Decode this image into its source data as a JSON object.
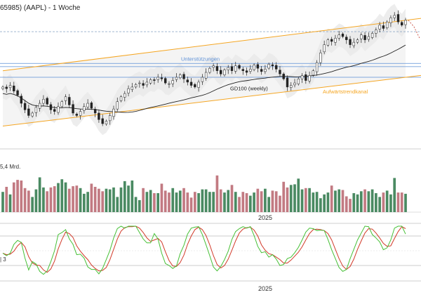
{
  "title": "65985) (AAPL) - 1 Woche",
  "colors": {
    "up": "#1f8a4c",
    "down": "#c0392b",
    "vol_up": "#4a8a62",
    "vol_down": "#c27a82",
    "channel": "#f5a623",
    "support": "#5b8fd6",
    "ma": "#222222",
    "stoch_k": "#46c036",
    "stoch_d": "#d23a2a",
    "band": "#e9e9e9"
  },
  "chart_data": [
    {
      "type": "candlestick",
      "panel": "price",
      "title": "65985) (AAPL) - 1 Woche",
      "x_axis": "weeks",
      "y_range": [
        100,
        270
      ],
      "weeks": 110,
      "annotations": {
        "support": "Unterstützungen",
        "ma": "GD100 (weekly)",
        "channel": "Aufwärtstrendkanal"
      },
      "ma_period": 100,
      "channel_lower": [
        [
          0,
          122
        ],
        [
          109,
          182
        ]
      ],
      "channel_upper": [
        [
          0,
          190
        ],
        [
          109,
          252
        ]
      ],
      "support_levels": [
        199,
        195,
        182
      ],
      "support_dashed": 238,
      "close": [
        170,
        168,
        172,
        165,
        160,
        150,
        142,
        135,
        138,
        145,
        150,
        155,
        149,
        142,
        140,
        146,
        152,
        158,
        148,
        138,
        135,
        140,
        146,
        150,
        144,
        138,
        130,
        125,
        128,
        135,
        143,
        152,
        158,
        162,
        168,
        170,
        173,
        175,
        172,
        176,
        179,
        178,
        182,
        180,
        175,
        174,
        178,
        182,
        185,
        180,
        176,
        172,
        170,
        176,
        182,
        188,
        193,
        196,
        190,
        186,
        191,
        194,
        190,
        196,
        193,
        190,
        188,
        192,
        197,
        193,
        189,
        192,
        198,
        196,
        192,
        186,
        180,
        170,
        172,
        175,
        180,
        184,
        178,
        184,
        190,
        200,
        212,
        222,
        228,
        226,
        230,
        234,
        232,
        228,
        222,
        225,
        228,
        234,
        228,
        232,
        236,
        240,
        246,
        242,
        250,
        255,
        258,
        250,
        246,
        252
      ]
    },
    {
      "type": "bar",
      "panel": "volume",
      "label": "5,4 Mrd.",
      "x_tick_label": "2025",
      "values": [
        32,
        40,
        28,
        47,
        51,
        50,
        38,
        34,
        24,
        36,
        55,
        39,
        33,
        39,
        41,
        46,
        52,
        47,
        37,
        41,
        42,
        38,
        29,
        32,
        45,
        40,
        37,
        33,
        37,
        36,
        39,
        24,
        39,
        49,
        42,
        50,
        24,
        19,
        38,
        32,
        35,
        30,
        30,
        45,
        34,
        31,
        38,
        31,
        34,
        38,
        31,
        23,
        32,
        30,
        36,
        36,
        32,
        32,
        58,
        36,
        31,
        35,
        43,
        32,
        24,
        32,
        30,
        26,
        31,
        37,
        33,
        37,
        24,
        34,
        33,
        26,
        48,
        39,
        43,
        44,
        53,
        36,
        38,
        38,
        31,
        32,
        22,
        28,
        31,
        42,
        34,
        36,
        35,
        25,
        21,
        30,
        28,
        33,
        36,
        33,
        36,
        30,
        24,
        31,
        34,
        28,
        54,
        31,
        31,
        29
      ],
      "y_range": [
        0,
        60
      ]
    },
    {
      "type": "line",
      "panel": "stochastic",
      "x_tick_label": "2025",
      "y_tick_label": "3",
      "levels": [
        80,
        20
      ],
      "y_range": [
        0,
        100
      ],
      "series": [
        {
          "key": "k",
          "values": [
            45,
            40,
            45,
            63,
            71,
            67,
            35,
            11,
            28,
            23,
            8,
            2,
            9,
            28,
            50,
            83,
            87,
            93,
            74,
            63,
            42,
            43,
            35,
            17,
            12,
            12,
            3,
            14,
            32,
            51,
            76,
            95,
            100,
            96,
            100,
            100,
            100,
            87,
            74,
            66,
            66,
            85,
            74,
            45,
            24,
            20,
            14,
            19,
            44,
            61,
            84,
            96,
            98,
            99,
            83,
            62,
            40,
            17,
            9,
            18,
            32,
            49,
            73,
            89,
            95,
            99,
            96,
            99,
            81,
            59,
            46,
            48,
            37,
            42,
            33,
            20,
            22,
            34,
            37,
            46,
            57,
            72,
            88,
            96,
            95,
            91,
            92,
            91,
            73,
            52,
            34,
            16,
            8,
            12,
            34,
            53,
            72,
            86,
            100,
            99,
            83,
            76,
            68,
            52,
            56,
            72,
            96,
            100,
            100,
            84
          ]
        },
        {
          "key": "d",
          "values": [
            45,
            42,
            43,
            49,
            60,
            67,
            58,
            38,
            25,
            21,
            20,
            11,
            6,
            13,
            29,
            54,
            73,
            88,
            85,
            77,
            60,
            49,
            40,
            32,
            21,
            14,
            9,
            10,
            16,
            32,
            53,
            74,
            90,
            97,
            99,
            99,
            100,
            96,
            87,
            76,
            69,
            72,
            75,
            68,
            48,
            30,
            19,
            18,
            26,
            41,
            63,
            80,
            93,
            98,
            93,
            81,
            62,
            40,
            22,
            15,
            20,
            33,
            51,
            70,
            86,
            94,
            97,
            98,
            92,
            80,
            62,
            51,
            44,
            42,
            37,
            32,
            25,
            25,
            31,
            39,
            47,
            58,
            72,
            85,
            93,
            94,
            93,
            91,
            85,
            72,
            53,
            34,
            19,
            12,
            18,
            33,
            53,
            70,
            86,
            95,
            94,
            86,
            76,
            65,
            59,
            60,
            75,
            89,
            99,
            95
          ]
        }
      ]
    }
  ]
}
